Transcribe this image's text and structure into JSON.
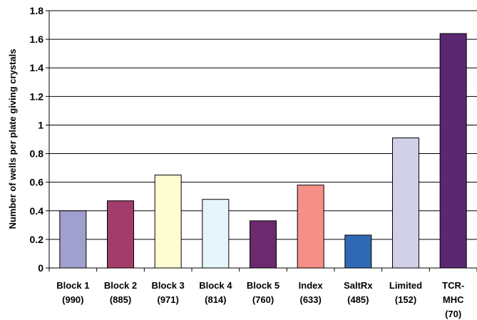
{
  "chart_data": {
    "type": "bar",
    "title": "",
    "xlabel": "",
    "ylabel": "Number of wells per plate giving crystals",
    "ylim": [
      0,
      1.8
    ],
    "yticks": [
      0,
      0.2,
      0.4,
      0.6,
      0.8,
      1,
      1.2,
      1.4,
      1.6,
      1.8
    ],
    "ytick_labels": [
      "0",
      "0.2",
      "0.4",
      "0.6",
      "0.8",
      "1",
      "1.2",
      "1.4",
      "1.6",
      "1.8"
    ],
    "grid": true,
    "legend": "none",
    "categories": [
      {
        "lines": [
          "Block 1",
          "(990)"
        ]
      },
      {
        "lines": [
          "Block 2",
          "(885)"
        ]
      },
      {
        "lines": [
          "Block 3",
          "(971)"
        ]
      },
      {
        "lines": [
          "Block 4",
          "(814)"
        ]
      },
      {
        "lines": [
          "Block 5",
          "(760)"
        ]
      },
      {
        "lines": [
          "Index",
          "(633)"
        ]
      },
      {
        "lines": [
          "SaltRx",
          "(485)"
        ]
      },
      {
        "lines": [
          "Limited",
          "(152)"
        ]
      },
      {
        "lines": [
          "TCR-",
          "MHC",
          "(70)"
        ]
      }
    ],
    "values": [
      0.4,
      0.47,
      0.65,
      0.48,
      0.33,
      0.58,
      0.23,
      0.91,
      1.64
    ],
    "colors": [
      "#a09fcd",
      "#a23d6b",
      "#fdfcd2",
      "#e6f5fc",
      "#6b2a6e",
      "#f49087",
      "#2f69b3",
      "#d0d0e8",
      "#5a2870"
    ]
  }
}
